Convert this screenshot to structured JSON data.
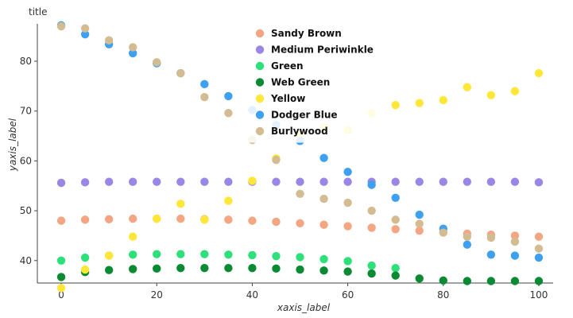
{
  "chart_data": {
    "type": "scatter",
    "title": "title",
    "xlabel": "xaxis_label",
    "ylabel": "yaxis_label",
    "xlim": [
      -5,
      103
    ],
    "ylim": [
      35.5,
      87.5
    ],
    "xticks": [
      0,
      20,
      40,
      60,
      80,
      100
    ],
    "yticks": [
      40,
      50,
      60,
      70,
      80
    ],
    "grid": false,
    "legend_position": "top-center",
    "x": [
      0,
      5,
      10,
      15,
      20,
      25,
      30,
      35,
      40,
      45,
      50,
      55,
      60,
      65,
      70,
      75,
      80,
      85,
      90,
      95,
      100
    ],
    "series": [
      {
        "name": "Sandy Brown",
        "color": "#F4A582",
        "values": [
          48.0,
          48.2,
          48.3,
          48.4,
          48.4,
          48.4,
          48.3,
          48.2,
          48.0,
          47.8,
          47.5,
          47.2,
          46.9,
          46.6,
          46.3,
          46.0,
          45.7,
          45.4,
          45.2,
          45.0,
          44.8
        ]
      },
      {
        "name": "Medium Periwinkle",
        "color": "#9A87E5",
        "values": [
          55.6,
          55.7,
          55.8,
          55.8,
          55.8,
          55.8,
          55.8,
          55.8,
          55.8,
          55.8,
          55.8,
          55.8,
          55.8,
          55.8,
          55.8,
          55.8,
          55.8,
          55.8,
          55.8,
          55.8,
          55.7
        ]
      },
      {
        "name": "Green",
        "color": "#2EE07A",
        "values": [
          40.0,
          40.6,
          41.0,
          41.2,
          41.3,
          41.3,
          41.3,
          41.2,
          41.1,
          40.9,
          40.7,
          40.3,
          39.9,
          39.0,
          38.5,
          null,
          null,
          null,
          null,
          null,
          null
        ]
      },
      {
        "name": "Web Green",
        "color": "#0A8A32",
        "values": [
          36.7,
          37.7,
          38.1,
          38.3,
          38.4,
          38.5,
          38.5,
          38.5,
          38.5,
          38.4,
          38.2,
          38.0,
          37.8,
          37.4,
          37.0,
          36.4,
          36.0,
          35.9,
          35.9,
          35.9,
          35.9
        ]
      },
      {
        "name": "Yellow",
        "color": "#FFE73A",
        "values": [
          34.5,
          38.2,
          41.0,
          44.8,
          48.4,
          51.4,
          48.2,
          52.0,
          56.0,
          60.5,
          65.4,
          66.8,
          66.2,
          69.6,
          71.2,
          71.6,
          72.2,
          74.8,
          73.2,
          74.0,
          77.6
        ]
      },
      {
        "name": "Dodger Blue",
        "color": "#3EA0F0",
        "values": [
          87.2,
          85.4,
          83.4,
          81.6,
          79.6,
          77.6,
          75.4,
          73.0,
          70.2,
          67.2,
          64.0,
          60.6,
          57.8,
          55.2,
          52.6,
          49.2,
          46.4,
          43.2,
          41.2,
          41.0,
          40.6
        ]
      },
      {
        "name": "Burlywood",
        "color": "#D3BC92",
        "values": [
          87.0,
          86.6,
          84.2,
          82.8,
          79.8,
          77.6,
          72.8,
          69.6,
          64.2,
          60.2,
          53.4,
          52.4,
          51.6,
          50.0,
          48.2,
          47.4,
          45.6,
          44.8,
          44.6,
          43.8,
          42.4
        ]
      }
    ]
  }
}
